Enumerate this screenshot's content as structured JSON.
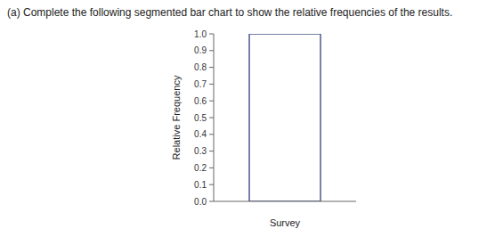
{
  "chart_data": {
    "type": "bar",
    "title": "(a) Complete the following segmented bar chart to show the relative frequencies of the results.",
    "xlabel": "Survey",
    "ylabel": "Relative Frequency",
    "categories": [
      null
    ],
    "values": [
      1.0
    ],
    "color": "#4a5a8a",
    "ylim": [
      0.0,
      1.0
    ],
    "yticks": [
      {
        "value": 0.0,
        "label": "0.0"
      },
      0.1,
      0.2,
      0.3,
      0.4,
      0.5,
      0.6,
      0.7,
      0.8,
      0.9,
      {
        "value": 1.0,
        "label": "1.0"
      }
    ],
    "grid": false,
    "tick_labels": "y"
  }
}
